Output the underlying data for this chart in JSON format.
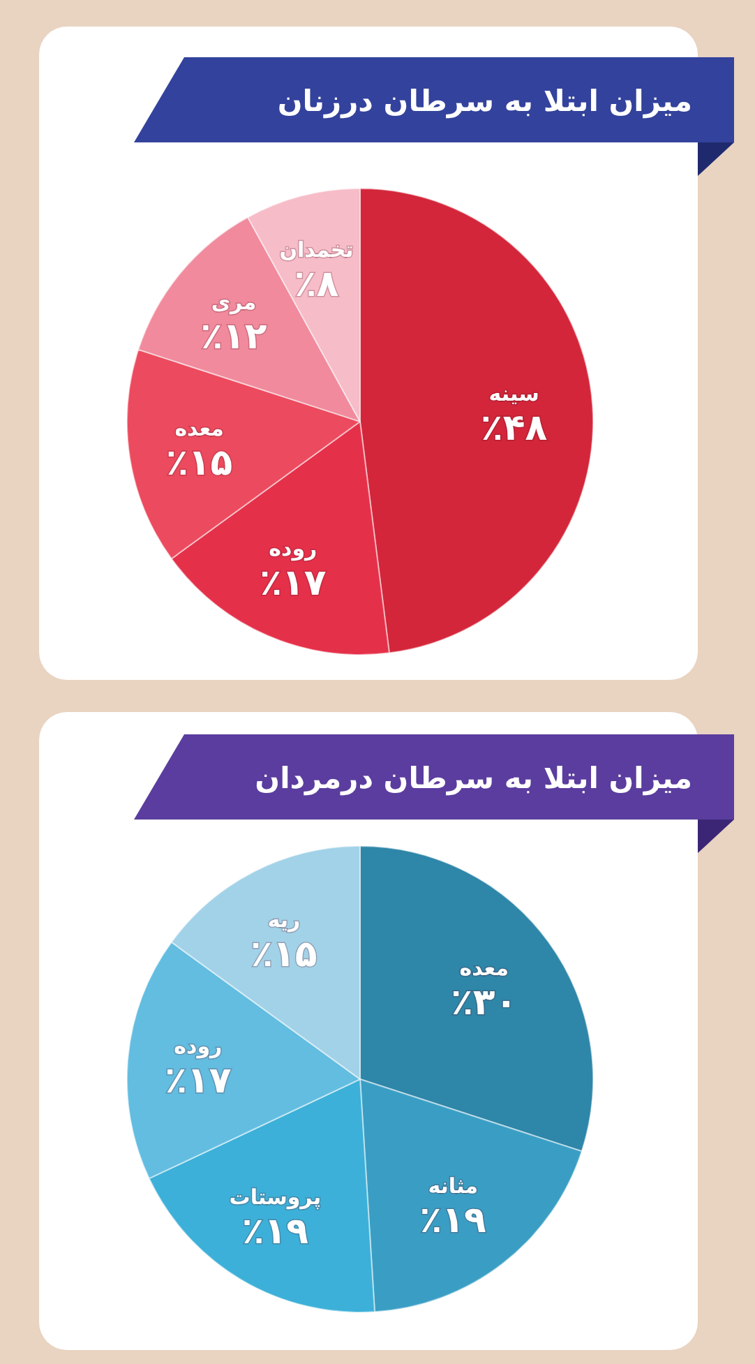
{
  "chart_data": [
    {
      "type": "pie",
      "title": "میزان ابتلا به سرطان درزنان",
      "categories": [
        "سینه",
        "روده",
        "معده",
        "مری",
        "تخمدان"
      ],
      "values": [
        48,
        17,
        15,
        12,
        8
      ],
      "colors": [
        "#d3263a",
        "#e5304a",
        "#ec4a5e",
        "#f08a9c",
        "#f6bcc8"
      ],
      "value_labels": [
        "٪۴۸",
        "٪۱۷",
        "٪۱۵",
        "٪۱۲",
        "٪۸"
      ]
    },
    {
      "type": "pie",
      "title": "میزان ابتلا به سرطان درمردان",
      "categories": [
        "معده",
        "مثانه",
        "پروستات",
        "روده",
        "ریه"
      ],
      "values": [
        30,
        19,
        19,
        17,
        15
      ],
      "colors": [
        "#2e86a8",
        "#3a9ec4",
        "#3cb0d8",
        "#62bde0",
        "#a2d2e8"
      ],
      "value_labels": [
        "٪۳۰",
        "٪۱۹",
        "٪۱۹",
        "٪۱۷",
        "٪۱۵"
      ]
    }
  ]
}
